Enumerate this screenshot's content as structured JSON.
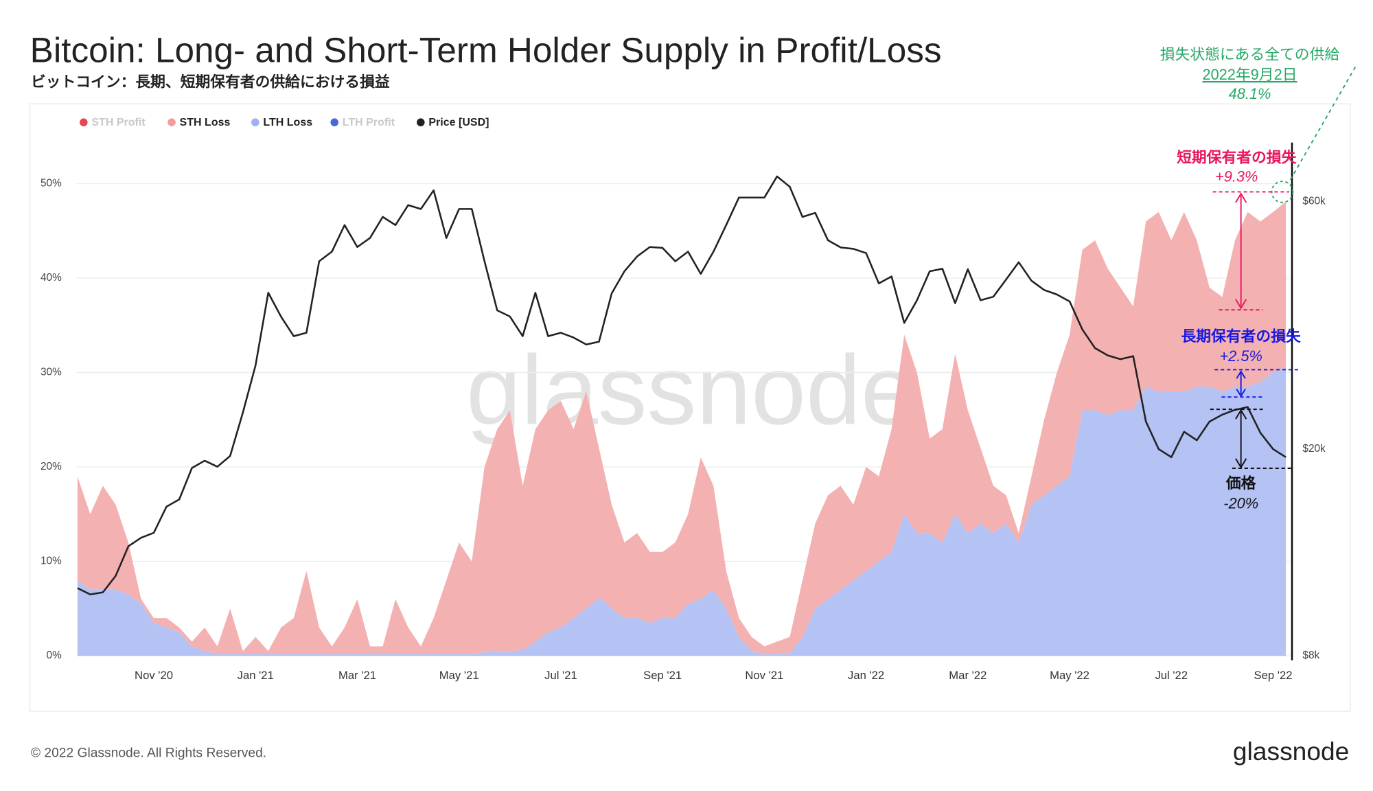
{
  "chart_data": {
    "type": "stacked_area",
    "title": "Bitcoin: Long- and Short-Term Holder Supply in Profit/Loss",
    "subtitle": "ビットコイン：長期、短期保有者の供給における損益",
    "categories": [
      null,
      null,
      null,
      null,
      null,
      null,
      "Nov '20",
      null,
      null,
      null,
      null,
      null,
      null,
      null,
      "Jan '21",
      null,
      null,
      null,
      null,
      null,
      null,
      null,
      "Mar '21",
      null,
      null,
      null,
      null,
      null,
      null,
      null,
      "May '21",
      null,
      null,
      null,
      null,
      null,
      null,
      null,
      "Jul '21",
      null,
      null,
      null,
      null,
      null,
      null,
      null,
      "Sep '21",
      null,
      null,
      null,
      null,
      null,
      null,
      null,
      "Nov '21",
      null,
      null,
      null,
      null,
      null,
      null,
      null,
      "Jan '22",
      null,
      null,
      null,
      null,
      null,
      null,
      null,
      "Mar '22",
      null,
      null,
      null,
      null,
      null,
      null,
      null,
      "May '22",
      null,
      null,
      null,
      null,
      null,
      null,
      null,
      "Jul '22",
      null,
      null,
      null,
      null,
      null,
      null,
      null,
      "Sep '22",
      null
    ],
    "series": [
      {
        "name": "STH Profit",
        "color": "#e0343f",
        "visible": false
      },
      {
        "name": "STH Loss",
        "color": "#f4b1b1",
        "legend_color": "#f29d9d",
        "visible": true,
        "kind": "area",
        "values": [
          11,
          8,
          11,
          9,
          5.5,
          0.5,
          0.5,
          1,
          0.5,
          0.5,
          2.5,
          0.8,
          4.8,
          0.3,
          1.8,
          0.3,
          2.8,
          3.8,
          8.8,
          2.8,
          0.8,
          2.8,
          5.8,
          0.8,
          0.8,
          5.8,
          2.8,
          0.8,
          3.8,
          7.8,
          11.8,
          9.8,
          19.6,
          23.5,
          25.5,
          17.4,
          22.5,
          23.5,
          24,
          20,
          23,
          15.8,
          11,
          8,
          9,
          7.5,
          7,
          8,
          9.5,
          15,
          11,
          4,
          2,
          1.5,
          0.8,
          1.3,
          1.7,
          6,
          9,
          11,
          11,
          8,
          11,
          9,
          13,
          19,
          17,
          10,
          12,
          17,
          13,
          8,
          5,
          3,
          1,
          3,
          8,
          12,
          15,
          17,
          18,
          15.5,
          13,
          11,
          17.5,
          19,
          16,
          19,
          15.5,
          10.5,
          10,
          15.5,
          18.5,
          17,
          17,
          17.5
        ]
      },
      {
        "name": "LTH Loss",
        "color": "#b4c2f4",
        "legend_color": "#9fb1ef",
        "visible": true,
        "kind": "area",
        "values": [
          8,
          7,
          7,
          7,
          6.5,
          5.5,
          3.5,
          3,
          2.5,
          1,
          0.5,
          0.2,
          0.2,
          0.2,
          0.2,
          0.2,
          0.2,
          0.2,
          0.2,
          0.2,
          0.2,
          0.2,
          0.2,
          0.2,
          0.2,
          0.2,
          0.2,
          0.2,
          0.2,
          0.2,
          0.2,
          0.2,
          0.4,
          0.5,
          0.5,
          0.6,
          1.5,
          2.5,
          3,
          4,
          5,
          6.2,
          5,
          4,
          4,
          3.5,
          4,
          4,
          5.5,
          6,
          7,
          5,
          2,
          0.5,
          0.2,
          0.2,
          0.3,
          2,
          5,
          6,
          7,
          8,
          9,
          10,
          11,
          15,
          13,
          13,
          12,
          15,
          13,
          14,
          13,
          14,
          12,
          16,
          17,
          18,
          19,
          26,
          26,
          25.5,
          26,
          26,
          28.5,
          28,
          28,
          28,
          28.5,
          28.5,
          28,
          28.5,
          28.5,
          29,
          30,
          30.6
        ]
      },
      {
        "name": "LTH Profit",
        "color": "#3358d4",
        "visible": false
      },
      {
        "name": "Price [USD]",
        "color": "#222222",
        "visible": true,
        "kind": "line",
        "axis": "y2",
        "values": [
          10800,
          10500,
          10600,
          11400,
          13000,
          13500,
          13800,
          15500,
          16000,
          18400,
          19000,
          18500,
          19400,
          23500,
          29000,
          40000,
          36000,
          33000,
          33500,
          46000,
          48000,
          54000,
          49000,
          51000,
          56000,
          54000,
          59000,
          58000,
          63000,
          51000,
          58000,
          58000,
          46000,
          37000,
          36000,
          33000,
          40000,
          33000,
          33500,
          32800,
          31800,
          32200,
          39900,
          44000,
          47000,
          49000,
          48800,
          46000,
          48000,
          43500,
          48000,
          54000,
          61000,
          61000,
          61000,
          67000,
          64000,
          56000,
          57000,
          50500,
          48900,
          48600,
          47700,
          41700,
          43000,
          35000,
          38700,
          44000,
          44500,
          38200,
          44400,
          38700,
          39300,
          42400,
          45800,
          42200,
          40500,
          39700,
          38500,
          34000,
          31300,
          30300,
          29800,
          30200,
          22600,
          20000,
          19300,
          21600,
          20800,
          22600,
          23300,
          23800,
          24100,
          21500,
          20000,
          19300
        ]
      }
    ],
    "ylim": [
      0,
      55
    ],
    "yticks": [
      {
        "value": 0,
        "label": "0%"
      },
      {
        "value": 10,
        "label": "10%"
      },
      {
        "value": 20,
        "label": "20%"
      },
      {
        "value": 30,
        "label": "30%"
      },
      {
        "value": 40,
        "label": "40%"
      },
      {
        "value": 50,
        "label": "50%"
      }
    ],
    "y2lim": [
      8000,
      80000
    ],
    "y2scale": "log",
    "y2ticks": [
      {
        "value": 8000,
        "label": "$8k"
      },
      {
        "value": 20000,
        "label": "$20k"
      },
      {
        "value": 60000,
        "label": "$60k"
      }
    ],
    "grid": true,
    "legend": "top-left",
    "watermark": "glassnode",
    "annotations": {
      "total": [
        "損失状態にある全ての供給",
        "2022年9月2日",
        "48.1%"
      ],
      "sth": [
        "短期保有者の損失",
        "+9.3%"
      ],
      "lth": [
        "長期保有者の損失",
        "+2.5%"
      ],
      "price": [
        "価格",
        "-20%"
      ]
    },
    "footer": "© 2022 Glassnode. All Rights Reserved.",
    "logo": "glassnode"
  }
}
